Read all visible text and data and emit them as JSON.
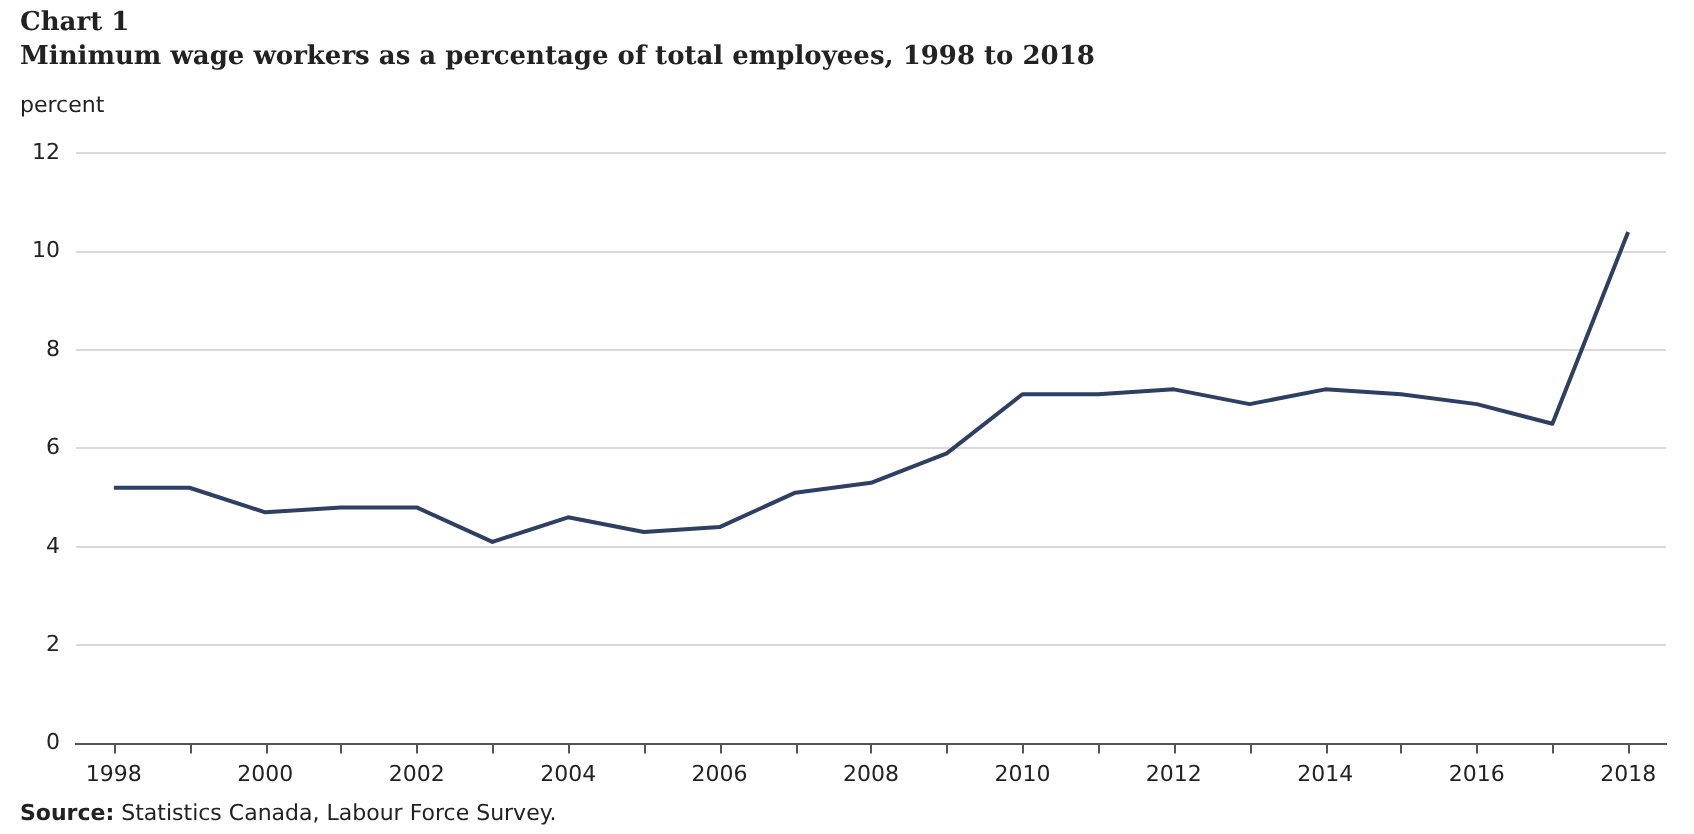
{
  "chart_data": {
    "type": "line",
    "title": "Chart 1",
    "subtitle": "Minimum  wage  workers  as a  percentage  of  total  employees,  1998  to  2018",
    "ylabel": "percent",
    "categories": [
      "1998",
      null,
      "2000",
      null,
      "2002",
      null,
      "2004",
      null,
      "2006",
      null,
      "2008",
      null,
      "2010",
      null,
      "2012",
      null,
      "2014",
      null,
      "2016",
      null,
      "2018"
    ],
    "series": [
      {
        "color": "#2e3f63",
        "values": [
          5.2,
          5.2,
          4.7,
          4.8,
          4.8,
          4.1,
          4.6,
          4.3,
          4.4,
          5.1,
          5.3,
          5.9,
          7.1,
          7.1,
          7.2,
          6.9,
          7.2,
          7.1,
          6.9,
          6.5,
          10.4
        ]
      }
    ],
    "ylim": [
      0,
      12
    ],
    "yticks": [
      0,
      2,
      4,
      6,
      8,
      10,
      12
    ],
    "grid": "y",
    "legend": false,
    "marker": "none",
    "line_style": "solid",
    "annotations": [
      "Source: Statistics Canada, Labour Force Survey."
    ]
  }
}
